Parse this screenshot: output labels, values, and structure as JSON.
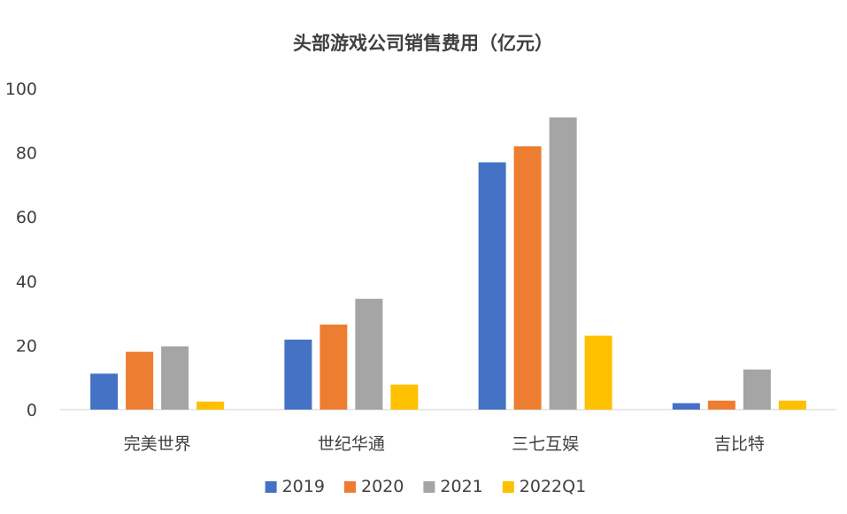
{
  "chart_data": {
    "type": "bar",
    "title": "头部游戏公司销售费用（亿元）",
    "xlabel": "",
    "ylabel": "",
    "ylim": [
      0,
      100
    ],
    "yticks": [
      "0",
      "20",
      "40",
      "60",
      "80",
      "100"
    ],
    "yticks_values": [
      0,
      20,
      40,
      60,
      80,
      100
    ],
    "categories": [
      "完美世界",
      "世纪华通",
      "三七互娱",
      "吉比特"
    ],
    "series": [
      {
        "name": "2019",
        "color": "#4472C4",
        "values": [
          11.2,
          21.8,
          77,
          2
        ]
      },
      {
        "name": "2020",
        "color": "#ED7D31",
        "values": [
          18,
          26.5,
          82,
          2.8
        ]
      },
      {
        "name": "2021",
        "color": "#A5A5A5",
        "values": [
          19.7,
          34.5,
          91,
          12.5
        ]
      },
      {
        "name": "2022Q1",
        "color": "#FFC000",
        "values": [
          2.5,
          7.8,
          23,
          2.8
        ]
      }
    ],
    "grid": false,
    "legend_position": "bottom"
  }
}
